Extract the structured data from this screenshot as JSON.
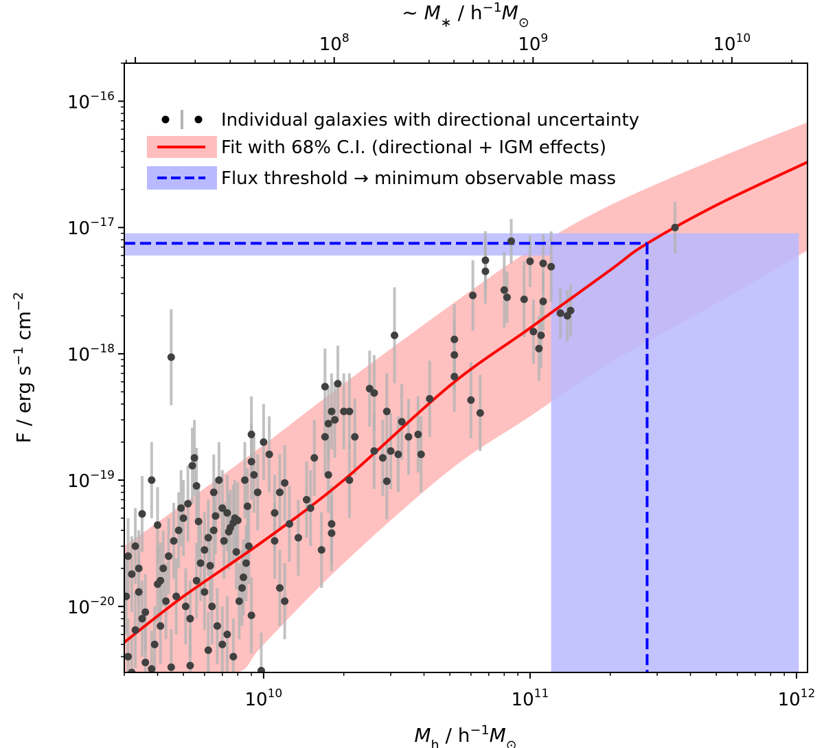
{
  "chart_data": {
    "type": "scatter",
    "x_scale": "log",
    "y_scale": "log",
    "xlim": [
      3000000000.0,
      1100000000000.0
    ],
    "ylim": [
      3e-21,
      2e-16
    ],
    "top_xlim": [
      8800000.0,
      24000000000.0
    ],
    "xlabel": {
      "main": "M",
      "sub": "h",
      "rest": " / h",
      "sup": "−1",
      "tail": "M",
      "tailsub": "⊙"
    },
    "ylabel": {
      "main": "F / erg s",
      "sup1": "−1",
      "mid": " cm",
      "sup2": "−2"
    },
    "top_xlabel": {
      "main": "∼ M",
      "sub": "∗",
      "rest": " / h",
      "sup": "−1",
      "tail": "M",
      "tailsub": "⊙"
    },
    "x_ticks": [
      {
        "value": 10000000000.0,
        "base": "10",
        "exp": "10"
      },
      {
        "value": 100000000000.0,
        "base": "10",
        "exp": "11"
      },
      {
        "value": 1000000000000.0,
        "base": "10",
        "exp": "12"
      }
    ],
    "y_ticks": [
      {
        "value": 1e-16,
        "base": "10",
        "exp": "−16"
      },
      {
        "value": 1e-17,
        "base": "10",
        "exp": "−17"
      },
      {
        "value": 1e-18,
        "base": "10",
        "exp": "−18"
      },
      {
        "value": 1e-19,
        "base": "10",
        "exp": "−19"
      },
      {
        "value": 1e-20,
        "base": "10",
        "exp": "−20"
      }
    ],
    "top_x_ticks": [
      {
        "value": 100000000.0,
        "base": "10",
        "exp": "8"
      },
      {
        "value": 1000000000.0,
        "base": "10",
        "exp": "9"
      },
      {
        "value": 10000000000.0,
        "base": "10",
        "exp": "10"
      }
    ],
    "legend": [
      {
        "label": "Individual galaxies with directional uncertainty",
        "kind": "points"
      },
      {
        "label": "Fit with 68% C.I. (directional + IGM effects)",
        "kind": "fit"
      },
      {
        "label": "Flux threshold → minimum observable mass",
        "kind": "threshold"
      }
    ],
    "fit_curve": {
      "name": "Fit",
      "color": "#ff0000",
      "points": [
        [
          3000000000.0,
          5.2e-21
        ],
        [
          5000000000.0,
          1.2e-20
        ],
        [
          10000000000.0,
          3.3e-20
        ],
        [
          20000000000.0,
          1e-19
        ],
        [
          50000000000.0,
          5.6e-19
        ],
        [
          100000000000.0,
          1.6e-18
        ],
        [
          200000000000.0,
          4.6e-18
        ],
        [
          270000000000.0,
          7.3e-18
        ],
        [
          500000000000.0,
          1.5e-17
        ],
        [
          1100000000000.0,
          3.3e-17
        ]
      ]
    },
    "ci_band": {
      "name": "68% C.I.",
      "color": "#ffbdbd",
      "lower": [
        [
          3000000000.0,
          3e-21
        ],
        [
          5000000000.0,
          3e-21
        ],
        [
          8000000000.0,
          3e-21
        ],
        [
          10000000000.0,
          5e-21
        ],
        [
          20000000000.0,
          2.2e-20
        ],
        [
          50000000000.0,
          1.2e-19
        ],
        [
          100000000000.0,
          3.2e-19
        ],
        [
          200000000000.0,
          8.5e-19
        ],
        [
          500000000000.0,
          2.5e-18
        ],
        [
          1100000000000.0,
          6.6e-18
        ]
      ],
      "upper": [
        [
          3000000000.0,
          3e-20
        ],
        [
          5000000000.0,
          6.5e-20
        ],
        [
          10000000000.0,
          1.9e-19
        ],
        [
          20000000000.0,
          5.8e-19
        ],
        [
          50000000000.0,
          2.4e-18
        ],
        [
          100000000000.0,
          6.6e-18
        ],
        [
          200000000000.0,
          1.5e-17
        ],
        [
          500000000000.0,
          3.5e-17
        ],
        [
          1100000000000.0,
          6.8e-17
        ]
      ]
    },
    "threshold": {
      "flux": 7.5e-18,
      "flux_band": [
        6e-18,
        9e-18
      ],
      "min_mass": 275000000000.0,
      "mass_band": [
        120000000000.0,
        1020000000000.0
      ],
      "line_color": "#0000ff",
      "band_color": "#b9b9ff"
    },
    "series": [
      {
        "name": "Individual galaxies",
        "color": "#404040",
        "error_color": "#b3b3b3",
        "points": [
          [
            4500000000.0,
            9.4e-19,
            2.4
          ],
          [
            68000000000.0,
            5.5e-18,
            1.7
          ],
          [
            68000000000.0,
            4.5e-18,
            1.8
          ],
          [
            85000000000.0,
            7.8e-18,
            1.5
          ],
          [
            80000000000.0,
            3.2e-18,
            2.0
          ],
          [
            82000000000.0,
            2.8e-18,
            1.6
          ],
          [
            100000000000.0,
            5.4e-18,
            1.6
          ],
          [
            112000000000.0,
            5.2e-18,
            1.7
          ],
          [
            120000000000.0,
            4.9e-18,
            1.9
          ],
          [
            95000000000.0,
            2.7e-18,
            2.0
          ],
          [
            103000000000.0,
            1.5e-18,
            1.8
          ],
          [
            110000000000.0,
            1.4e-18,
            1.8
          ],
          [
            108000000000.0,
            1.1e-18,
            1.8
          ],
          [
            112000000000.0,
            2.6e-18,
            1.7
          ],
          [
            130000000000.0,
            2.1e-18,
            1.6
          ],
          [
            138000000000.0,
            2e-18,
            1.6
          ],
          [
            142000000000.0,
            2.2e-18,
            1.6
          ],
          [
            350000000000.0,
            1e-17,
            1.6
          ],
          [
            61000000000.0,
            2.9e-18,
            1.9
          ],
          [
            52000000000.0,
            1.3e-18,
            1.9
          ],
          [
            52000000000.0,
            9.8e-19,
            1.9
          ],
          [
            52000000000.0,
            6.6e-19,
            1.9
          ],
          [
            60000000000.0,
            4.3e-19,
            2.0
          ],
          [
            65000000000.0,
            3.4e-19,
            2.0
          ],
          [
            42000000000.0,
            4.4e-19,
            2.0
          ],
          [
            31000000000.0,
            1.4e-18,
            2.4
          ],
          [
            25000000000.0,
            5.3e-19,
            2.0
          ],
          [
            26000000000.0,
            4.9e-19,
            2.0
          ],
          [
            29000000000.0,
            3.5e-19,
            2.0
          ],
          [
            33000000000.0,
            2.9e-19,
            2.0
          ],
          [
            35000000000.0,
            2.2e-19,
            2.0
          ],
          [
            38000000000.0,
            2.3e-19,
            2.0
          ],
          [
            39000000000.0,
            1.6e-19,
            2.0
          ],
          [
            30000000000.0,
            1.7e-19,
            2.0
          ],
          [
            22000000000.0,
            2.2e-19,
            2.0
          ],
          [
            26000000000.0,
            1.7e-19,
            2.0
          ],
          [
            21000000000.0,
            3.5e-19,
            2.0
          ],
          [
            20000000000.0,
            3.5e-19,
            2.0
          ],
          [
            29000000000.0,
            9.8e-20,
            2.0
          ],
          [
            32000000000.0,
            1.6e-19,
            2.0
          ],
          [
            28000000000.0,
            1.5e-19,
            2.0
          ],
          [
            19000000000.0,
            5.8e-19,
            2.0
          ],
          [
            17000000000.0,
            5.5e-19,
            2.0
          ],
          [
            18000000000.0,
            3.5e-19,
            2.0
          ],
          [
            17500000000.0,
            2.8e-19,
            2.0
          ],
          [
            18500000000.0,
            3e-19,
            2.0
          ],
          [
            17000000000.0,
            2.2e-19,
            2.0
          ],
          [
            21000000000.0,
            1e-19,
            2.0
          ],
          [
            15500000000.0,
            1.5e-19,
            2.0
          ],
          [
            17500000000.0,
            1.1e-19,
            2.0
          ],
          [
            18000000000.0,
            4.5e-20,
            2.0
          ],
          [
            18000000000.0,
            3.8e-20,
            2.0
          ],
          [
            16500000000.0,
            2.8e-20,
            2.0
          ],
          [
            15000000000.0,
            6e-20,
            2.0
          ],
          [
            13500000000.0,
            3.5e-20,
            2.0
          ],
          [
            14500000000.0,
            7e-20,
            2.0
          ],
          [
            12500000000.0,
            4.5e-20,
            2.0
          ],
          [
            10500000000.0,
            1.6e-19,
            2.0
          ],
          [
            11000000000.0,
            5.5e-20,
            2.0
          ],
          [
            11500000000.0,
            8e-20,
            2.0
          ],
          [
            12000000000.0,
            9.5e-20,
            2.0
          ],
          [
            11000000000.0,
            3.3e-20,
            2.0
          ],
          [
            10000000000.0,
            2e-19,
            2.0
          ],
          [
            9500000000.0,
            8e-20,
            2.0
          ],
          [
            9000000000.0,
            2.3e-19,
            2.0
          ],
          [
            9000000000.0,
            1.4e-19,
            2.0
          ],
          [
            8500000000.0,
            1e-19,
            2.0
          ],
          [
            8000000000.0,
            4.8e-20,
            2.0
          ],
          [
            9200000000.0,
            1.1e-19,
            2.0
          ],
          [
            8800000000.0,
            3e-20,
            2.0
          ],
          [
            8600000000.0,
            2.2e-20,
            2.0
          ],
          [
            8400000000.0,
            1.7e-20,
            2.0
          ],
          [
            9000000000.0,
            8.5e-21,
            2.0
          ],
          [
            9800000000.0,
            3.1e-21,
            2.0
          ],
          [
            11500000000.0,
            1.4e-20,
            2.0
          ],
          [
            12000000000.0,
            1.1e-20,
            2.0
          ],
          [
            7800000000.0,
            5e-20,
            2.0
          ],
          [
            7700000000.0,
            4.6e-20,
            2.0
          ],
          [
            7500000000.0,
            4.2e-20,
            2.0
          ],
          [
            7300000000.0,
            5.5e-20,
            2.0
          ],
          [
            7000000000.0,
            6e-20,
            2.0
          ],
          [
            6800000000.0,
            1e-19,
            2.0
          ],
          [
            6500000000.0,
            8e-20,
            2.0
          ],
          [
            6500000000.0,
            4e-20,
            2.0
          ],
          [
            6200000000.0,
            3.5e-20,
            2.0
          ],
          [
            6000000000.0,
            2.8e-20,
            2.0
          ],
          [
            5800000000.0,
            2.2e-20,
            2.0
          ],
          [
            5600000000.0,
            1.6e-20,
            2.0
          ],
          [
            5500000000.0,
            1.5e-19,
            2.0
          ],
          [
            5400000000.0,
            1.3e-19,
            2.0
          ],
          [
            5200000000.0,
            6.5e-20,
            2.0
          ],
          [
            5000000000.0,
            5e-20,
            2.0
          ],
          [
            4800000000.0,
            4e-20,
            2.0
          ],
          [
            4600000000.0,
            3.3e-20,
            2.0
          ],
          [
            4400000000.0,
            2.5e-20,
            2.0
          ],
          [
            4200000000.0,
            2e-20,
            2.0
          ],
          [
            4000000000.0,
            1.5e-20,
            2.0
          ],
          [
            3800000000.0,
            1e-19,
            2.0
          ],
          [
            3500000000.0,
            5.4e-20,
            2.0
          ],
          [
            3300000000.0,
            3e-20,
            2.0
          ],
          [
            3100000000.0,
            2.5e-20,
            2.0
          ],
          [
            3200000000.0,
            1.8e-20,
            2.0
          ],
          [
            3400000000.0,
            1.3e-20,
            2.0
          ],
          [
            3600000000.0,
            9e-21,
            2.0
          ],
          [
            3300000000.0,
            6.5e-21,
            2.0
          ],
          [
            3900000000.0,
            5e-21,
            2.0
          ],
          [
            4100000000.0,
            7e-21,
            2.0
          ],
          [
            4300000000.0,
            1.1e-20,
            2.0
          ],
          [
            4700000000.0,
            1.2e-20,
            2.0
          ],
          [
            5100000000.0,
            1e-20,
            2.0
          ],
          [
            5300000000.0,
            8e-21,
            2.0
          ],
          [
            6000000000.0,
            1.3e-20,
            2.0
          ],
          [
            6400000000.0,
            1e-20,
            2.0
          ],
          [
            6700000000.0,
            7e-21,
            2.0
          ],
          [
            7000000000.0,
            5e-21,
            2.0
          ],
          [
            7300000000.0,
            6e-21,
            2.0
          ],
          [
            7700000000.0,
            4e-21,
            2.0
          ],
          [
            8100000000.0,
            1.1e-20,
            2.0
          ],
          [
            8300000000.0,
            1.4e-20,
            2.0
          ],
          [
            3200000000.0,
            3e-21,
            2.0
          ],
          [
            3800000000.0,
            3.2e-21,
            2.0
          ],
          [
            4500000000.0,
            3.3e-21,
            2.0
          ],
          [
            5300000000.0,
            3.4e-21,
            2.0
          ],
          [
            6200000000.0,
            4.5e-21,
            2.0
          ],
          [
            3100000000.0,
            4e-21,
            2.0
          ],
          [
            3600000000.0,
            3.6e-21,
            2.0
          ],
          [
            4000000000.0,
            4.4e-20,
            2.0
          ],
          [
            4900000000.0,
            6e-20,
            2.0
          ],
          [
            5700000000.0,
            4.7e-20,
            2.0
          ],
          [
            6300000000.0,
            2.1e-20,
            2.0
          ],
          [
            7100000000.0,
            3.3e-20,
            2.0
          ],
          [
            7900000000.0,
            2.7e-20,
            2.0
          ],
          [
            8700000000.0,
            6.2e-20,
            2.0
          ],
          [
            3400000000.0,
            2e-20,
            2.0
          ],
          [
            4100000000.0,
            1.6e-20,
            2.0
          ],
          [
            5600000000.0,
            9e-20,
            2.0
          ],
          [
            6600000000.0,
            5.2e-20,
            2.0
          ],
          [
            7400000000.0,
            3.9e-20,
            2.0
          ],
          [
            3050000000.0,
            1.2e-20,
            2.0
          ],
          [
            3500000000.0,
            8e-21,
            2.0
          ]
        ]
      }
    ]
  }
}
